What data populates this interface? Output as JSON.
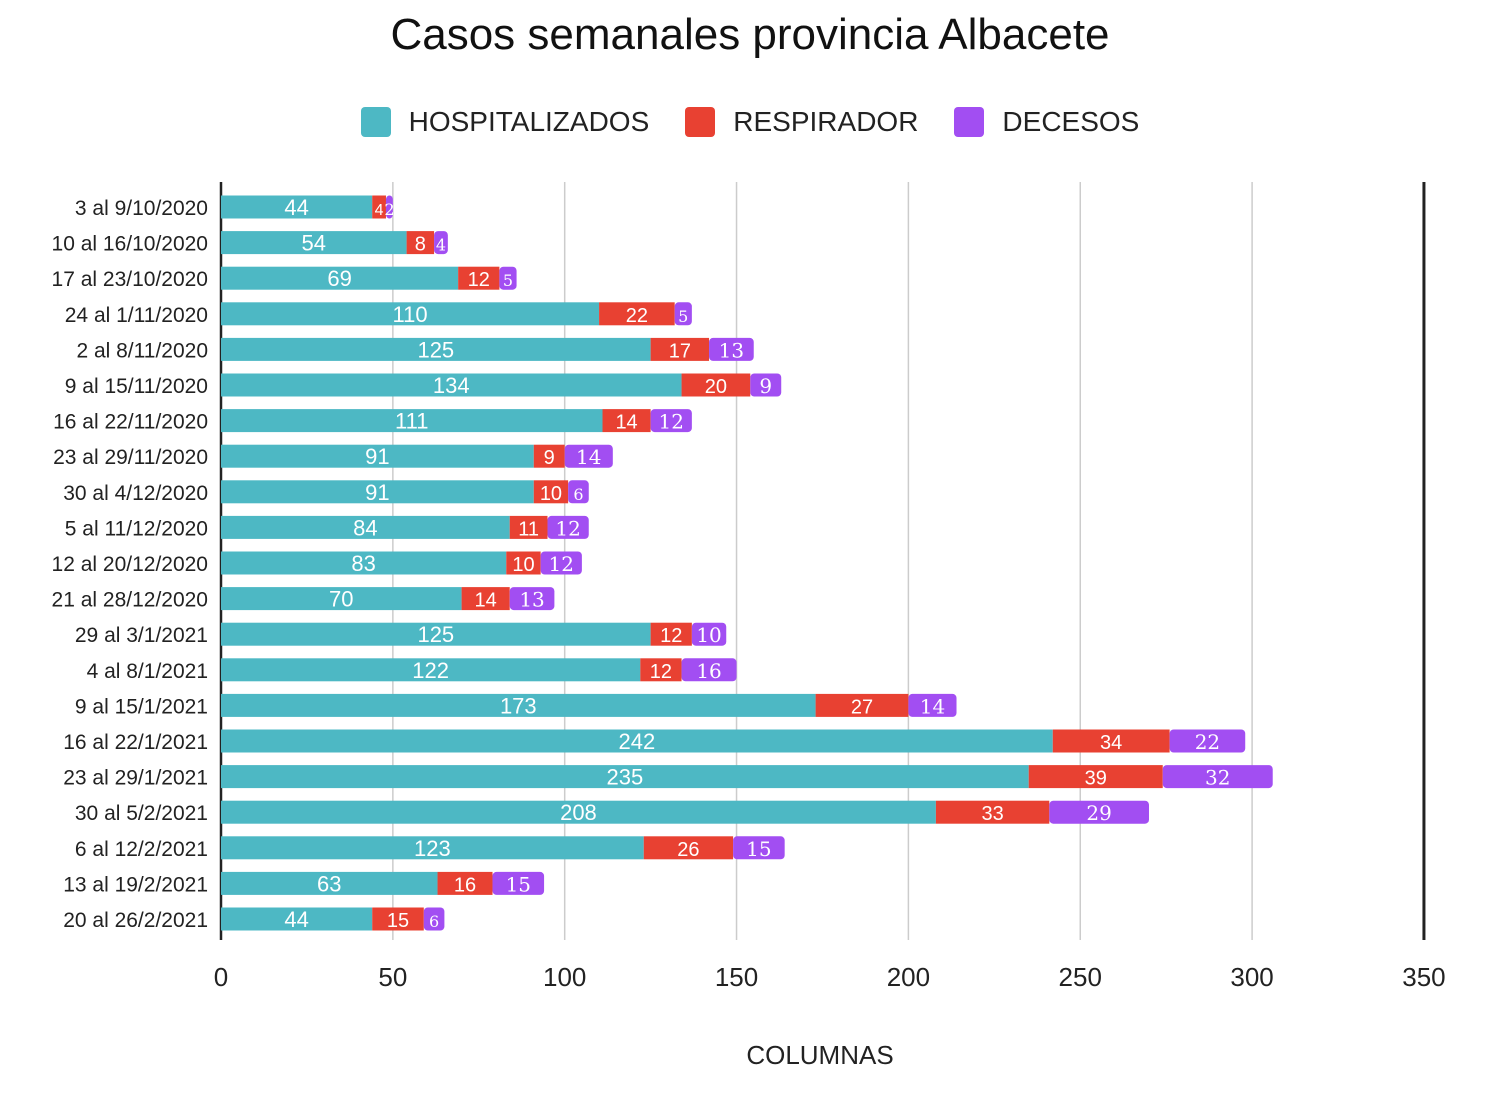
{
  "chart_data": {
    "type": "bar",
    "orientation": "horizontal",
    "stacked": true,
    "title": "Casos semanales provincia Albacete",
    "xlabel": "COLUMNAS",
    "ylabel": "",
    "xlim": [
      0,
      350
    ],
    "xticks": [
      "0",
      "50",
      "100",
      "150",
      "200",
      "250",
      "300",
      "350"
    ],
    "grid": true,
    "legend_position": "top",
    "categories": [
      "3 al 9/10/2020",
      "10 al 16/10/2020",
      "17 al 23/10/2020",
      "24 al 1/11/2020",
      "2 al 8/11/2020",
      "9 al 15/11/2020",
      "16 al 22/11/2020",
      "23 al 29/11/2020",
      "30 al 4/12/2020",
      "5 al 11/12/2020",
      "12 al 20/12/2020",
      "21 al 28/12/2020",
      "29 al 3/1/2021",
      "4 al 8/1/2021",
      "9 al 15/1/2021",
      "16 al 22/1/2021",
      "23 al 29/1/2021",
      "30 al 5/2/2021",
      "6 al 12/2/2021",
      "13 al 19/2/2021",
      "20 al 26/2/2021"
    ],
    "series": [
      {
        "name": "HOSPITALIZADOS",
        "color": "#4db8c4",
        "values": [
          44,
          54,
          69,
          110,
          125,
          134,
          111,
          91,
          91,
          84,
          83,
          70,
          125,
          122,
          173,
          242,
          235,
          208,
          123,
          63,
          44
        ]
      },
      {
        "name": "RESPIRADOR",
        "color": "#e84132",
        "values": [
          4,
          8,
          12,
          22,
          17,
          20,
          14,
          9,
          10,
          11,
          10,
          14,
          12,
          12,
          27,
          34,
          39,
          33,
          26,
          16,
          15
        ]
      },
      {
        "name": "DECESOS",
        "color": "#a24ef2",
        "values": [
          2,
          4,
          5,
          5,
          13,
          9,
          12,
          14,
          6,
          12,
          12,
          13,
          10,
          16,
          14,
          22,
          32,
          29,
          15,
          15,
          6
        ]
      }
    ]
  }
}
